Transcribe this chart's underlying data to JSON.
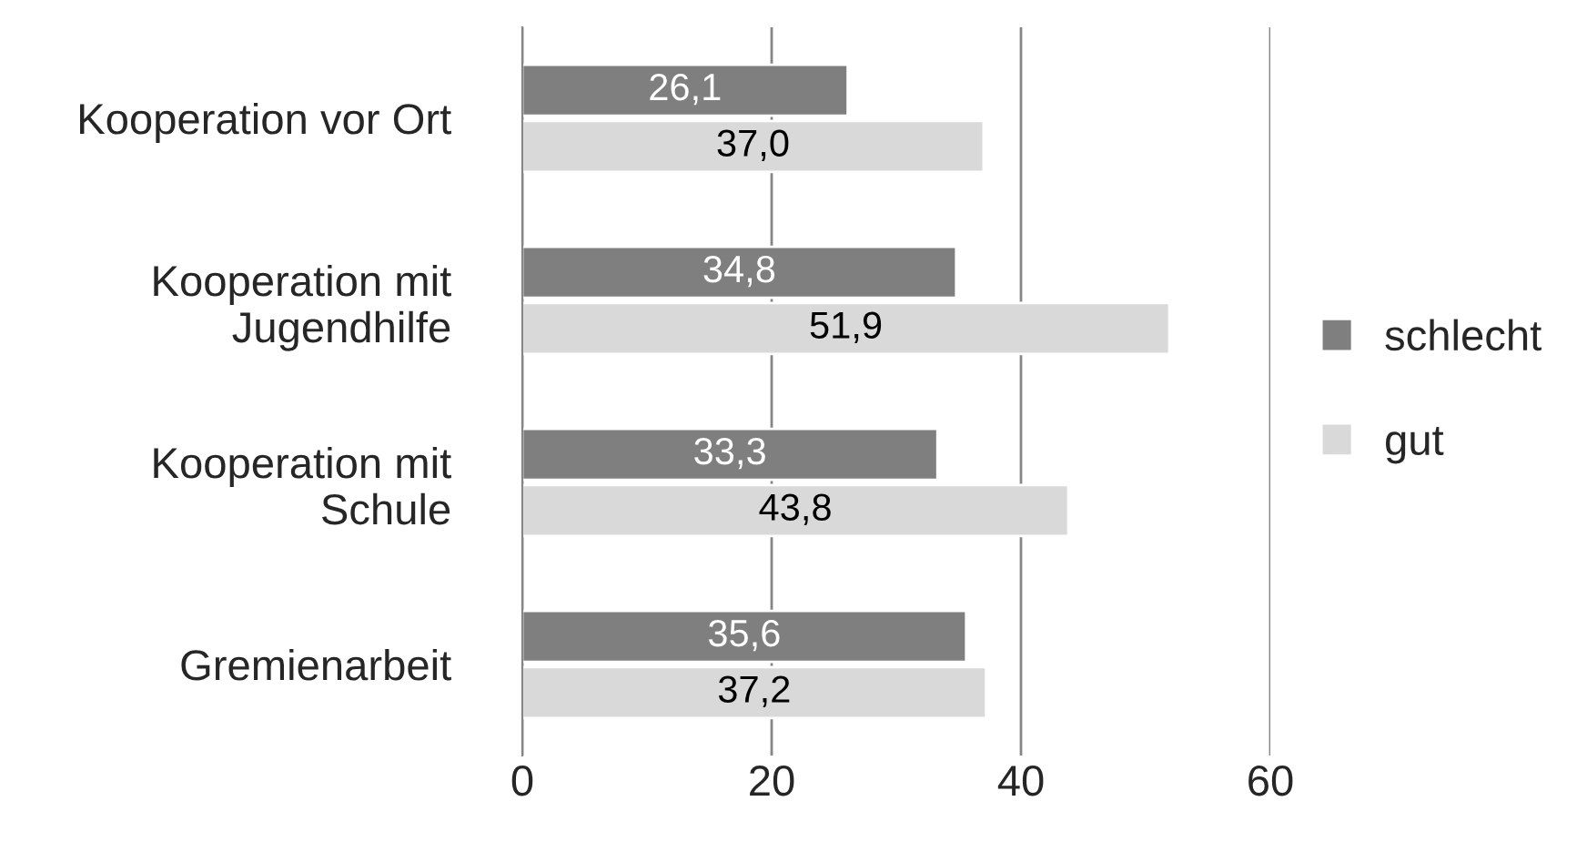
{
  "chart_data": {
    "type": "bar",
    "orientation": "horizontal",
    "categories": [
      "Kooperation vor Ort",
      "Kooperation mit\nJugendhilfe",
      "Kooperation mit\nSchule",
      "Gremienarbeit"
    ],
    "series": [
      {
        "name": "schlecht",
        "color": "#7f7f7f",
        "values": [
          26.1,
          34.8,
          33.3,
          35.6
        ],
        "value_labels": [
          "26,1",
          "34,8",
          "33,3",
          "35,6"
        ]
      },
      {
        "name": "gut",
        "color": "#d9d9d9",
        "values": [
          37.0,
          51.9,
          43.8,
          37.2
        ],
        "value_labels": [
          "37,0",
          "51,9",
          "43,8",
          "37,2"
        ]
      }
    ],
    "xlim": [
      0,
      60
    ],
    "xticks": [
      0,
      20,
      40,
      60
    ],
    "grid": "x",
    "legend": "right"
  }
}
